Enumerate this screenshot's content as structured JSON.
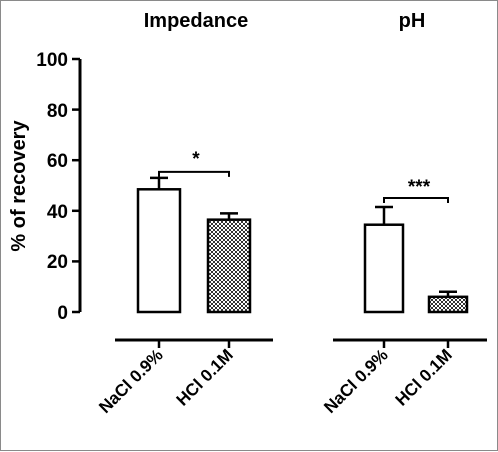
{
  "chart_data": [
    {
      "type": "bar",
      "title": "Impedance",
      "ylabel": "% of recovery",
      "ylim": [
        0,
        100
      ],
      "yticks": [
        "0",
        "20",
        "40",
        "60",
        "80",
        "100"
      ],
      "categories": [
        "NaCl 0.9%",
        "HCl 0.1M"
      ],
      "values": [
        48.5,
        36.5
      ],
      "errors": [
        4.5,
        2.5
      ],
      "significance": "*",
      "grid": false
    },
    {
      "type": "bar",
      "title": "pH",
      "ylim": [
        0,
        100
      ],
      "categories": [
        "NaCl 0.9%",
        "HCl 0.1M"
      ],
      "values": [
        34.5,
        6
      ],
      "errors": [
        7,
        2
      ],
      "significance": "***",
      "grid": false
    }
  ],
  "colors": {
    "axis": "#000000",
    "bar_fill_first": "#ffffff",
    "bar_fill_second_pattern": "checkered"
  }
}
